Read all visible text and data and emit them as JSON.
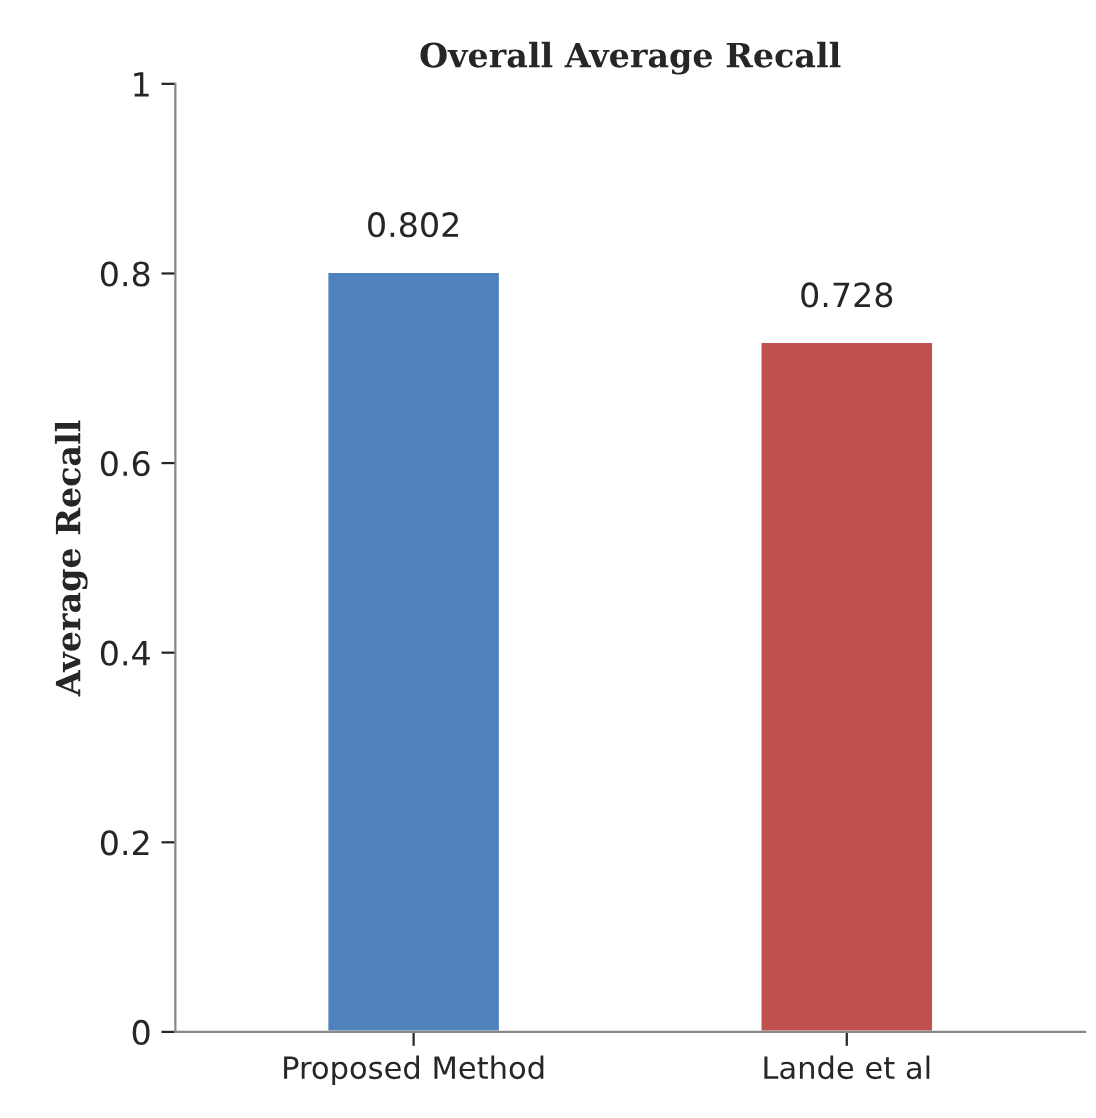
{
  "chart_data": {
    "type": "bar",
    "title": "Overall Average Recall",
    "ylabel": "Average Recall",
    "categories": [
      "Proposed Method",
      "Lande et al"
    ],
    "values": [
      0.802,
      0.728
    ],
    "colors": [
      "#4f81bd",
      "#c0504d"
    ],
    "ylim": [
      0,
      1
    ],
    "yticks": [
      0,
      0.2,
      0.4,
      0.6,
      0.8,
      1
    ],
    "data_labels": true,
    "grid": false,
    "legend": false
  }
}
